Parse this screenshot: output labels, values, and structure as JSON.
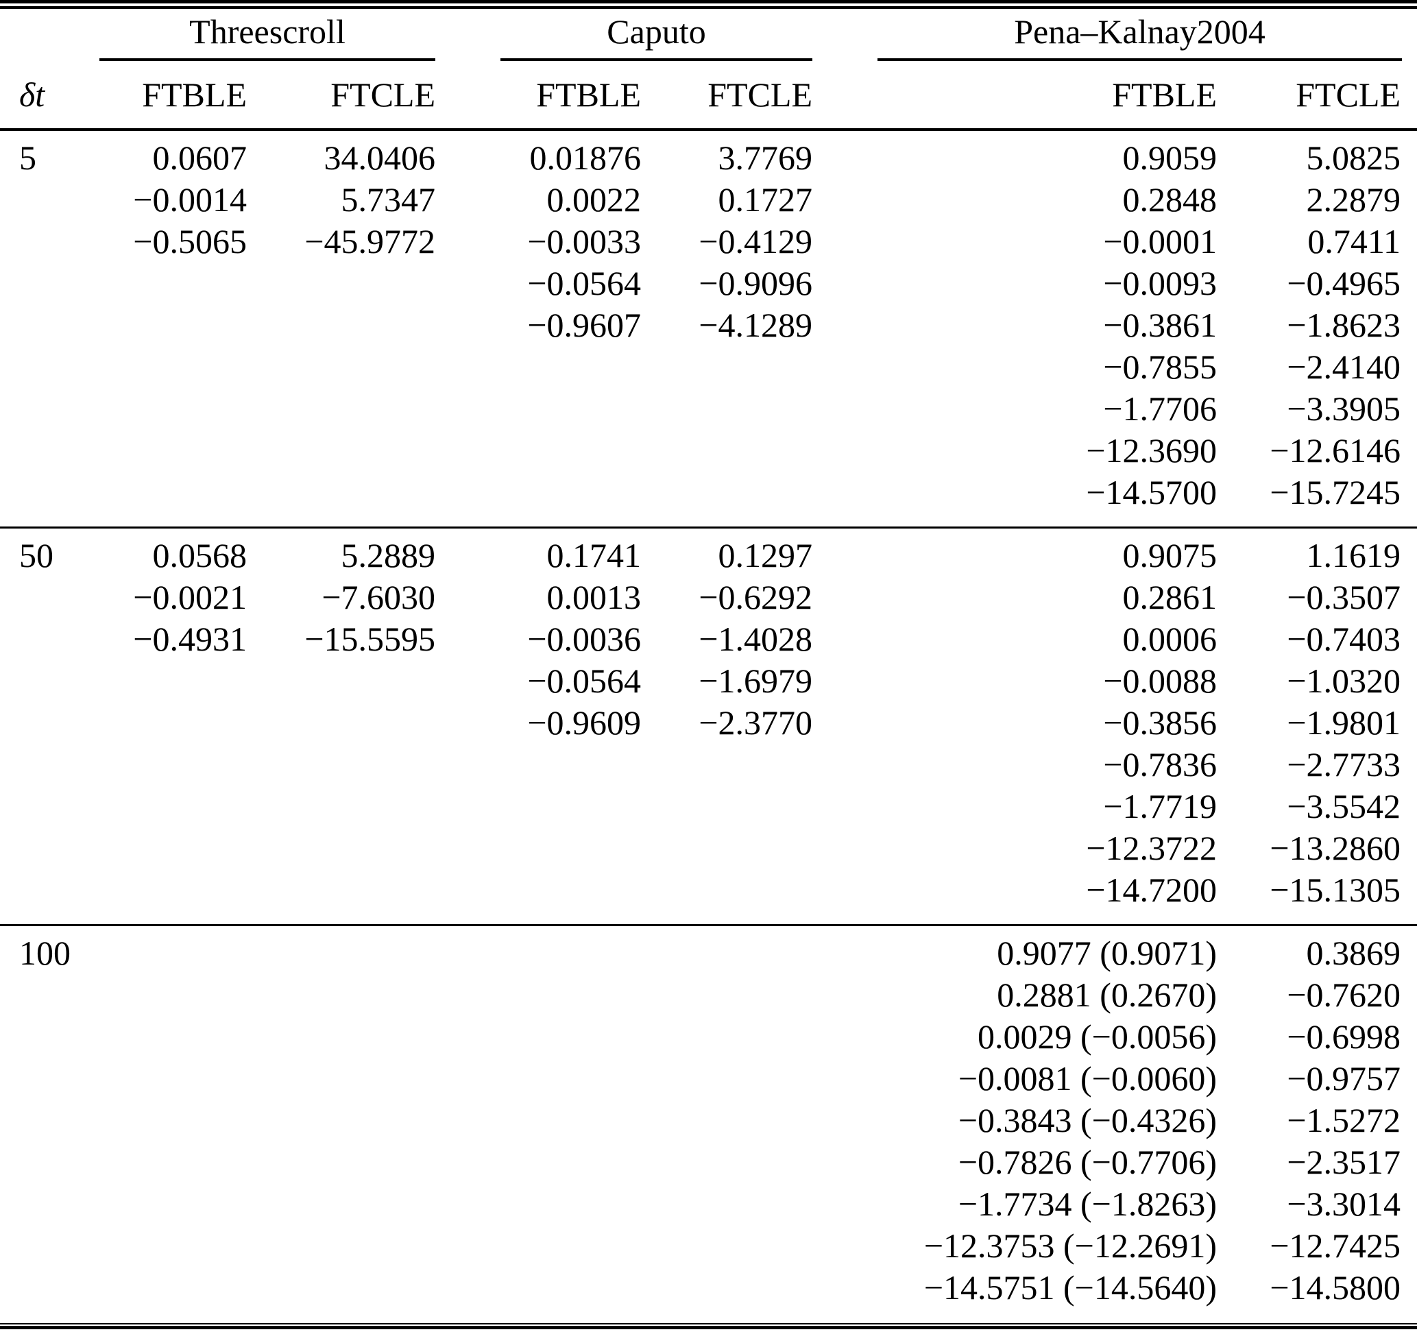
{
  "header": {
    "dt_label": "δt",
    "groups": [
      {
        "name": "Threescroll",
        "col_labels": [
          "FTBLE",
          "FTCLE"
        ]
      },
      {
        "name": "Caputo",
        "col_labels": [
          "FTBLE",
          "FTCLE"
        ]
      },
      {
        "name": "Pena–Kalnay2004",
        "col_labels": [
          "FTBLE",
          "FTCLE"
        ]
      }
    ]
  },
  "sections": [
    {
      "dt": "5",
      "rows": [
        [
          "0.0607",
          "34.0406",
          "0.01876",
          "3.7769",
          "0.9059",
          "5.0825"
        ],
        [
          "−0.0014",
          "5.7347",
          "0.0022",
          "0.1727",
          "0.2848",
          "2.2879"
        ],
        [
          "−0.5065",
          "−45.9772",
          "−0.0033",
          "−0.4129",
          "−0.0001",
          "0.7411"
        ],
        [
          "",
          "",
          "−0.0564",
          "−0.9096",
          "−0.0093",
          "−0.4965"
        ],
        [
          "",
          "",
          "−0.9607",
          "−4.1289",
          "−0.3861",
          "−1.8623"
        ],
        [
          "",
          "",
          "",
          "",
          "−0.7855",
          "−2.4140"
        ],
        [
          "",
          "",
          "",
          "",
          "−1.7706",
          "−3.3905"
        ],
        [
          "",
          "",
          "",
          "",
          "−12.3690",
          "−12.6146"
        ],
        [
          "",
          "",
          "",
          "",
          "−14.5700",
          "−15.7245"
        ]
      ]
    },
    {
      "dt": "50",
      "rows": [
        [
          "0.0568",
          "5.2889",
          "0.1741",
          "0.1297",
          "0.9075",
          "1.1619"
        ],
        [
          "−0.0021",
          "−7.6030",
          "0.0013",
          "−0.6292",
          "0.2861",
          "−0.3507"
        ],
        [
          "−0.4931",
          "−15.5595",
          "−0.0036",
          "−1.4028",
          "0.0006",
          "−0.7403"
        ],
        [
          "",
          "",
          "−0.0564",
          "−1.6979",
          "−0.0088",
          "−1.0320"
        ],
        [
          "",
          "",
          "−0.9609",
          "−2.3770",
          "−0.3856",
          "−1.9801"
        ],
        [
          "",
          "",
          "",
          "",
          "−0.7836",
          "−2.7733"
        ],
        [
          "",
          "",
          "",
          "",
          "−1.7719",
          "−3.5542"
        ],
        [
          "",
          "",
          "",
          "",
          "−12.3722",
          "−13.2860"
        ],
        [
          "",
          "",
          "",
          "",
          "−14.7200",
          "−15.1305"
        ]
      ]
    },
    {
      "dt": "100",
      "rows": [
        [
          "",
          "",
          "",
          "",
          "0.9077 (0.9071)",
          "0.3869"
        ],
        [
          "",
          "",
          "",
          "",
          "0.2881 (0.2670)",
          "−0.7620"
        ],
        [
          "",
          "",
          "",
          "",
          "0.0029 (−0.0056)",
          "−0.6998"
        ],
        [
          "",
          "",
          "",
          "",
          "−0.0081 (−0.0060)",
          "−0.9757"
        ],
        [
          "",
          "",
          "",
          "",
          "−0.3843 (−0.4326)",
          "−1.5272"
        ],
        [
          "",
          "",
          "",
          "",
          "−0.7826 (−0.7706)",
          "−2.3517"
        ],
        [
          "",
          "",
          "",
          "",
          "−1.7734 (−1.8263)",
          "−3.3014"
        ],
        [
          "",
          "",
          "",
          "",
          "−12.3753 (−12.2691)",
          "−12.7425"
        ],
        [
          "",
          "",
          "",
          "",
          "−14.5751 (−14.5640)",
          "−14.5800"
        ]
      ]
    }
  ]
}
